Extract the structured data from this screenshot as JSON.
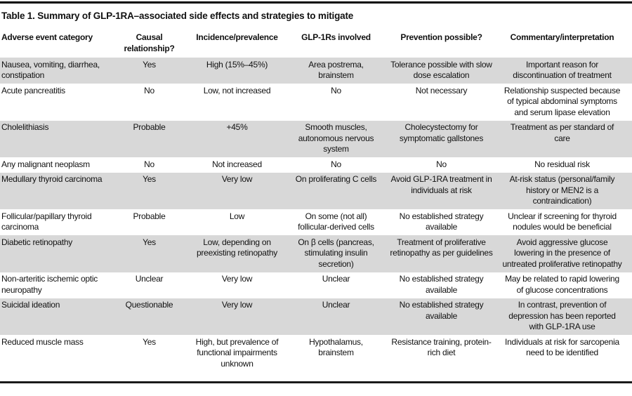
{
  "title": "Table 1. Summary of GLP-1RA–associated side effects and strategies to mitigate",
  "table": {
    "columns": [
      "Adverse event category",
      "Causal relationship?",
      "Incidence/prevalence",
      "GLP-1Rs involved",
      "Prevention possible?",
      "Commentary/interpretation"
    ],
    "rows": [
      {
        "shaded": true,
        "cells": [
          "Nausea, vomiting, diarrhea, constipation",
          "Yes",
          "High (15%–45%)",
          "Area postrema, brainstem",
          "Tolerance possible with slow dose escalation",
          "Important reason for discontinuation of treatment"
        ]
      },
      {
        "shaded": false,
        "cells": [
          "Acute pancreatitis",
          "No",
          "Low, not increased",
          "No",
          "Not necessary",
          "Relationship suspected because of typical abdominal symptoms and serum lipase elevation"
        ]
      },
      {
        "shaded": true,
        "cells": [
          "Cholelithiasis",
          "Probable",
          "+45%",
          "Smooth muscles, autonomous nervous system",
          "Cholecystectomy for symptomatic gallstones",
          "Treatment as per standard of care"
        ]
      },
      {
        "shaded": false,
        "cells": [
          "Any malignant neoplasm",
          "No",
          "Not increased",
          "No",
          "No",
          "No residual risk"
        ]
      },
      {
        "shaded": true,
        "cells": [
          "Medullary thyroid carcinoma",
          "Yes",
          "Very low",
          "On proliferating C cells",
          "Avoid GLP-1RA treatment in individuals at risk",
          "At-risk status (personal/family history or MEN2 is a contraindication)"
        ]
      },
      {
        "shaded": false,
        "cells": [
          "Follicular/papillary thyroid carcinoma",
          "Probable",
          "Low",
          "On some (not all) follicular-derived cells",
          "No established strategy available",
          "Unclear if screening for thyroid nodules would be beneficial"
        ]
      },
      {
        "shaded": true,
        "cells": [
          "Diabetic retinopathy",
          "Yes",
          "Low, depending on preexisting retinopathy",
          "On β cells (pancreas, stimulating insulin secretion)",
          "Treatment of proliferative retinopathy as per guidelines",
          "Avoid aggressive glucose lowering in the presence of untreated proliferative retinopathy"
        ]
      },
      {
        "shaded": false,
        "cells": [
          "Non-arteritic ischemic optic neuropathy",
          "Unclear",
          "Very low",
          "Unclear",
          "No established strategy available",
          "May be related to rapid lowering of glucose concentrations"
        ]
      },
      {
        "shaded": true,
        "cells": [
          "Suicidal ideation",
          "Questionable",
          "Very low",
          "Unclear",
          "No established strategy available",
          "In contrast, prevention of depression has been reported with GLP-1RA use"
        ]
      },
      {
        "shaded": false,
        "cells": [
          "Reduced muscle mass",
          "Yes",
          "High, but prevalence of functional impairments unknown",
          "Hypothalamus, brainstem",
          "Resistance training, protein-rich diet",
          "Individuals at risk for sarcopenia need to be identified"
        ]
      }
    ]
  },
  "colors": {
    "row_shade": "#d8d8d8",
    "rule": "#000000",
    "text": "#111111"
  }
}
